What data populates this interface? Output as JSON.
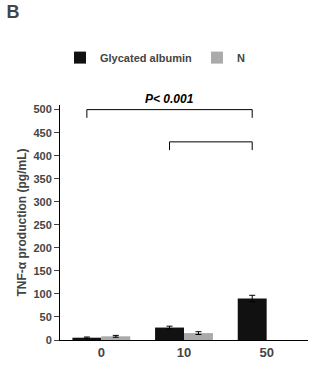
{
  "chart_data": {
    "type": "bar",
    "title": "B",
    "categories": [
      "0",
      "10",
      "50"
    ],
    "series": [
      {
        "name": "Glycated albumin",
        "color": "#111111",
        "values": [
          5,
          27,
          90
        ],
        "errors": [
          1.5,
          3,
          7
        ]
      },
      {
        "name": "N",
        "color": "#aaaaaa",
        "values": [
          8,
          15,
          null
        ],
        "errors": [
          2,
          3,
          null
        ]
      }
    ],
    "ylabel": "TNF-α production (pg/mL)",
    "ylim": [
      0,
      510
    ],
    "yticks": [
      0,
      50,
      100,
      150,
      200,
      250,
      300,
      350,
      400,
      450,
      500
    ],
    "grid": false,
    "legend": "top",
    "brackets": [
      {
        "from": "0",
        "to": "50",
        "y": 500,
        "text": "P< 0.001"
      },
      {
        "from": "10",
        "to": "50",
        "y": 430
      }
    ]
  }
}
